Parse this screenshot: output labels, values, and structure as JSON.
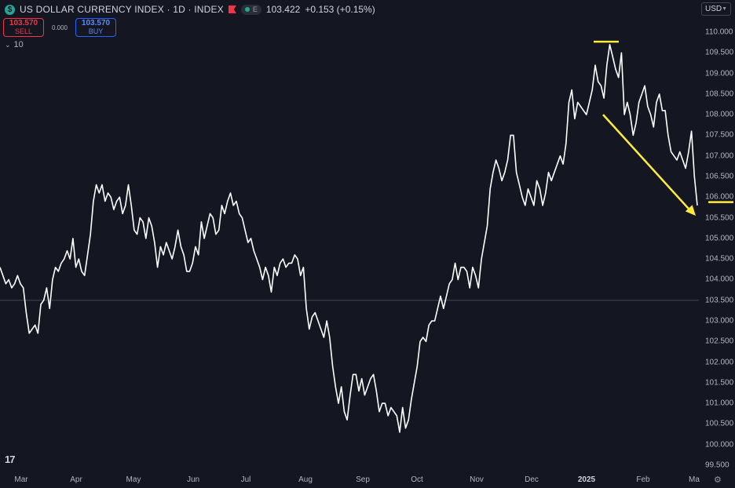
{
  "header": {
    "logo_glyph": "$",
    "title": "US DOLLAR CURRENCY INDEX · 1D · INDEX",
    "exchange_badge": "E",
    "price": "103.422",
    "change": "+0.153 (+0.15%)"
  },
  "trade": {
    "sell_price": "103.570",
    "sell_label": "SELL",
    "spread": "0.000",
    "buy_price": "103.570",
    "buy_label": "BUY"
  },
  "indicator": {
    "count": "10"
  },
  "currency": "USD",
  "chart_data": {
    "type": "line",
    "title": "US DOLLAR CURRENCY INDEX · 1D · INDEX",
    "xlabel": "",
    "ylabel": "",
    "ylim": [
      99.5,
      110.0
    ],
    "grid": false,
    "x_ticks": [
      "Mar",
      "Apr",
      "May",
      "Jun",
      "Jul",
      "Aug",
      "Sep",
      "Oct",
      "Nov",
      "Dec",
      "2025",
      "Feb",
      "Ma"
    ],
    "y_ticks": [
      "110.000",
      "109.500",
      "109.000",
      "108.500",
      "108.000",
      "107.500",
      "107.000",
      "106.500",
      "106.000",
      "105.500",
      "105.000",
      "104.500",
      "104.000",
      "103.500",
      "103.000",
      "102.500",
      "102.000",
      "101.500",
      "101.000",
      "100.500",
      "100.000",
      "99.500"
    ],
    "reference_level": 103.5,
    "series": [
      {
        "values": [
          104.3,
          104.1,
          103.9,
          104.0,
          103.8,
          103.9,
          104.1,
          103.9,
          103.8,
          103.2,
          102.7,
          102.8,
          102.9,
          102.7,
          103.4,
          103.5,
          103.8,
          103.3,
          104.0,
          104.3,
          104.2,
          104.4,
          104.5,
          104.7,
          104.5,
          105.0,
          104.3,
          104.5,
          104.2,
          104.1,
          104.6,
          105.1,
          105.9,
          106.3,
          106.1,
          106.3,
          105.9,
          106.1,
          106.0,
          105.7,
          105.9,
          106.0,
          105.6,
          105.8,
          106.3,
          105.8,
          105.2,
          105.1,
          105.5,
          105.4,
          105.0,
          105.5,
          105.3,
          104.9,
          104.3,
          104.8,
          104.6,
          104.9,
          104.7,
          104.5,
          104.8,
          105.2,
          104.8,
          104.6,
          104.2,
          104.2,
          104.4,
          104.8,
          104.6,
          105.4,
          105.0,
          105.3,
          105.6,
          105.5,
          105.1,
          105.2,
          105.8,
          105.6,
          105.9,
          106.1,
          105.8,
          105.9,
          105.6,
          105.5,
          105.2,
          104.9,
          105.0,
          104.7,
          104.5,
          104.3,
          104.0,
          104.3,
          104.1,
          103.7,
          104.3,
          104.1,
          104.4,
          104.5,
          104.3,
          104.4,
          104.4,
          104.6,
          104.5,
          104.1,
          104.3,
          103.3,
          102.8,
          103.1,
          103.2,
          103.0,
          102.8,
          102.6,
          103.0,
          102.6,
          101.9,
          101.4,
          101.0,
          101.4,
          100.8,
          100.6,
          101.2,
          101.7,
          101.7,
          101.3,
          101.6,
          101.2,
          101.4,
          101.6,
          101.7,
          101.3,
          100.8,
          101.0,
          101.0,
          100.7,
          100.9,
          100.8,
          100.7,
          100.3,
          100.9,
          100.4,
          100.6,
          101.1,
          101.5,
          101.9,
          102.5,
          102.6,
          102.5,
          102.9,
          103.0,
          103.0,
          103.3,
          103.6,
          103.3,
          103.6,
          103.9,
          104.0,
          104.4,
          104.0,
          104.3,
          104.3,
          104.2,
          103.8,
          104.3,
          104.1,
          103.8,
          104.5,
          104.9,
          105.3,
          106.2,
          106.6,
          106.9,
          106.7,
          106.4,
          106.6,
          106.9,
          107.5,
          107.5,
          106.6,
          106.3,
          106.0,
          105.8,
          106.2,
          106.0,
          105.8,
          106.4,
          106.2,
          105.8,
          106.1,
          106.6,
          106.4,
          106.6,
          106.8,
          107.0,
          106.8,
          107.3,
          108.3,
          108.6,
          107.9,
          108.3,
          108.2,
          108.1,
          108.0,
          108.3,
          108.6,
          109.2,
          108.8,
          108.7,
          108.4,
          109.2,
          109.7,
          109.4,
          109.1,
          108.9,
          109.5,
          108.0,
          108.3,
          108.0,
          107.5,
          107.8,
          108.3,
          108.5,
          108.7,
          108.2,
          108.0,
          107.7,
          108.3,
          108.5,
          108.1,
          108.1,
          107.5,
          107.1,
          107.0,
          106.9,
          107.1,
          106.9,
          106.7,
          107.1,
          107.6,
          106.5,
          105.8
        ]
      }
    ],
    "annotations": [
      {
        "type": "horizontal-line",
        "color": "#ffeb3b",
        "level": 109.77
      },
      {
        "type": "horizontal-line",
        "color": "#ffeb3b",
        "level": 105.88
      },
      {
        "type": "arrow",
        "color": "#ffeb3b",
        "from": {
          "date": "2025-01-14",
          "value": 108.0
        },
        "to": {
          "date": "2025-03-04",
          "value": 105.55
        }
      }
    ]
  }
}
